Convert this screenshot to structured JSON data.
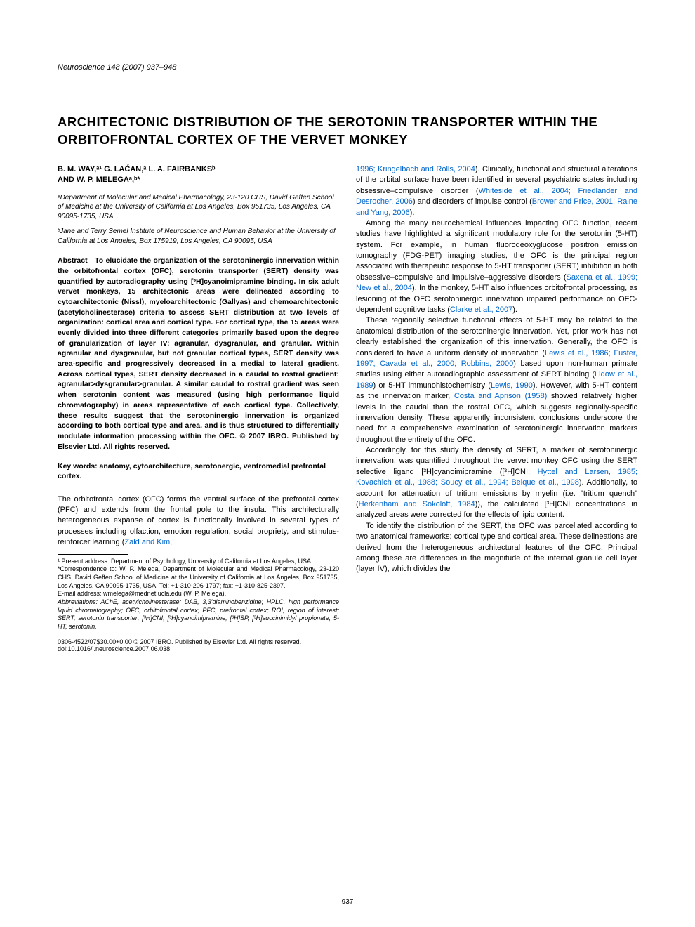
{
  "journal_header": "Neuroscience 148 (2007) 937–948",
  "title": "ARCHITECTONIC DISTRIBUTION OF THE SEROTONIN TRANSPORTER WITHIN THE ORBITOFRONTAL CORTEX OF THE VERVET MONKEY",
  "authors_line1": "B. M. WAY,ᵃ¹ G. LAĆAN,ᵃ L. A. FAIRBANKSᵇ",
  "authors_line2": "AND W. P. MELEGAᵃ,ᵇ*",
  "affil_a": "ᵃDepartment of Molecular and Medical Pharmacology, 23-120 CHS, David Geffen School of Medicine at the University of California at Los Angeles, Box 951735, Los Angeles, CA 90095-1735, USA",
  "affil_b": "ᵇJane and Terry Semel Institute of Neuroscience and Human Behavior at the University of California at Los Angeles, Box 175919, Los Angeles, CA 90095, USA",
  "abstract": "Abstract—To elucidate the organization of the serotoninergic innervation within the orbitofrontal cortex (OFC), serotonin transporter (SERT) density was quantified by autoradiography using [³H]cyanoimipramine binding. In six adult vervet monkeys, 15 architectonic areas were delineated according to cytoarchitectonic (Nissl), myeloarchitectonic (Gallyas) and chemoarchitectonic (acetylcholinesterase) criteria to assess SERT distribution at two levels of organization: cortical area and cortical type. For cortical type, the 15 areas were evenly divided into three different categories primarily based upon the degree of granularization of layer IV: agranular, dysgranular, and granular. Within agranular and dysgranular, but not granular cortical types, SERT density was area-specific and progressively decreased in a medial to lateral gradient. Across cortical types, SERT density decreased in a caudal to rostral gradient: agranular>dysgranular>granular. A similar caudal to rostral gradient was seen when serotonin content was measured (using high performance liquid chromatography) in areas representative of each cortical type. Collectively, these results suggest that the serotoninergic innervation is organized according to both cortical type and area, and is thus structured to differentially modulate information processing within the OFC. © 2007 IBRO. Published by Elsevier Ltd. All rights reserved.",
  "keywords": "Key words: anatomy, cytoarchitecture, serotonergic, ventromedial prefrontal cortex.",
  "intro_p1_a": "The orbitofrontal cortex (OFC) forms the ventral surface of the prefrontal cortex (PFC) and extends from the frontal pole to the insula. This architecturally heterogeneous expanse of cortex is functionally involved in several types of processes including olfaction, emotion regulation, social propriety, and stimulus-reinforcer learning (",
  "intro_p1_link1": "Zald and Kim,",
  "footnote1": "¹ Present address: Department of Psychology, University of California at Los Angeles, USA.",
  "footnote_corr": "*Correspondence to: W. P. Melega, Department of Molecular and Medical Pharmacology, 23-120 CHS, David Geffen School of Medicine at the University of California at Los Angeles, Box 951735, Los Angeles, CA 90095-1735, USA. Tel: +1-310-206-1797; fax: +1-310-825-2397.",
  "footnote_email": "E-mail address: wmelega@mednet.ucla.edu (W. P. Melega).",
  "footnote_abbrev": "Abbreviations: AChE, acetylcholinesterase; DAB, 3,3′diaminobenzidine; HPLC, high performance liquid chromatography; OFC, orbitofrontal cortex; PFC, prefrontal cortex; ROI, region of interest; SERT, serotonin transporter; [³H]CNI, [³H]cyanoimipramine; [³H]SP, [³H]succinimidyl propionate; 5-HT, serotonin.",
  "col2_p1_link1": "1996; Kringelbach and Rolls, 2004",
  "col2_p1_a": "). Clinically, functional and structural alterations of the orbital surface have been identified in several psychiatric states including obsessive–compulsive disorder (",
  "col2_p1_link2": "Whiteside et al., 2004; Friedlander and Desrocher, 2006",
  "col2_p1_b": ") and disorders of impulse control (",
  "col2_p1_link3": "Brower and Price, 2001; Raine and Yang, 2006",
  "col2_p1_c": ").",
  "col2_p2_a": "Among the many neurochemical influences impacting OFC function, recent studies have highlighted a significant modulatory role for the serotonin (5-HT) system. For example, in human fluorodeoxyglucose positron emission tomography (FDG-PET) imaging studies, the OFC is the principal region associated with therapeutic response to 5-HT transporter (SERT) inhibition in both obsessive–compulsive and impulsive–aggressive disorders (",
  "col2_p2_link1": "Saxena et al., 1999; New et al., 2004",
  "col2_p2_b": "). In the monkey, 5-HT also influences orbitofrontal processing, as lesioning of the OFC serotoninergic innervation impaired performance on OFC-dependent cognitive tasks (",
  "col2_p2_link2": "Clarke et al., 2007",
  "col2_p2_c": ").",
  "col2_p3_a": "These regionally selective functional effects of 5-HT may be related to the anatomical distribution of the serotoninergic innervation. Yet, prior work has not clearly established the organization of this innervation. Generally, the OFC is considered to have a uniform density of innervation (",
  "col2_p3_link1": "Lewis et al., 1986; Fuster, 1997; Cavada et al., 2000; Robbins, 2000",
  "col2_p3_b": ") based upon non-human primate studies using either autoradiographic assessment of SERT binding (",
  "col2_p3_link2": "Lidow et al., 1989",
  "col2_p3_c": ") or 5-HT immunohistochemistry (",
  "col2_p3_link3": "Lewis, 1990",
  "col2_p3_d": "). However, with 5-HT content as the innervation marker, ",
  "col2_p3_link4": "Costa and Aprison (1958)",
  "col2_p3_e": " showed relatively higher levels in the caudal than the rostral OFC, which suggests regionally-specific innervation density. These apparently inconsistent conclusions underscore the need for a comprehensive examination of serotoninergic innervation markers throughout the entirety of the OFC.",
  "col2_p4_a": "Accordingly, for this study the density of SERT, a marker of serotoninergic innervation, was quantified throughout the vervet monkey OFC using the SERT selective ligand [³H]cyanoimipramine ([³H]CNI; ",
  "col2_p4_link1": "Hyttel and Larsen, 1985; Kovachich et al., 1988; Soucy et al., 1994; Beique et al., 1998",
  "col2_p4_b": "). Additionally, to account for attenuation of tritium emissions by myelin (i.e. \"tritium quench\" (",
  "col2_p4_link2": "Herkenham and Sokoloff, 1984",
  "col2_p4_c": ")), the calculated [³H]CNI concentrations in analyzed areas were corrected for the effects of lipid content.",
  "col2_p5": "To identify the distribution of the SERT, the OFC was parcellated according to two anatomical frameworks: cortical type and cortical area. These delineations are derived from the heterogeneous architectural features of the OFC. Principal among these are differences in the magnitude of the internal granule cell layer (layer IV), which divides the",
  "copyright": "0306-4522/07$30.00+0.00 © 2007 IBRO. Published by Elsevier Ltd. All rights reserved.",
  "doi": "doi:10.1016/j.neuroscience.2007.06.038",
  "page_number": "937"
}
